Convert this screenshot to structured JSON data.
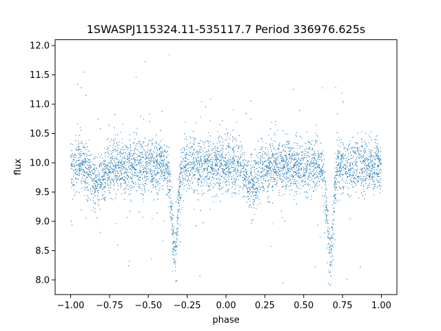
{
  "chart_data": {
    "type": "scatter",
    "title": "1SWASPJ115324.11-535117.7 Period 336976.625s",
    "xlabel": "phase",
    "ylabel": "flux",
    "xlim": [
      -1.1,
      1.1
    ],
    "ylim": [
      7.75,
      12.1
    ],
    "xticks": [
      -1.0,
      -0.75,
      -0.5,
      -0.25,
      0.0,
      0.25,
      0.5,
      0.75,
      1.0
    ],
    "xtick_labels": [
      "−1.00",
      "−0.75",
      "−0.50",
      "−0.25",
      "0.00",
      "0.25",
      "0.50",
      "0.75",
      "1.00"
    ],
    "yticks": [
      8.0,
      8.5,
      9.0,
      9.5,
      10.0,
      10.5,
      11.0,
      11.5,
      12.0
    ],
    "ytick_labels": [
      "8.0",
      "8.5",
      "9.0",
      "9.5",
      "10.0",
      "10.5",
      "11.0",
      "11.5",
      "12.0"
    ],
    "grid": false,
    "marker_color": "#1f77b4",
    "series": [
      {
        "x_range": [
          -1.0,
          1.0
        ],
        "baseline_flux": 9.95,
        "primary_eclipses": [
          {
            "phase": -0.33,
            "min_flux": 8.5
          },
          {
            "phase": 0.67,
            "min_flux": 8.5
          }
        ],
        "secondary_eclipses": [
          {
            "phase": -0.83,
            "min_flux": 9.6
          },
          {
            "phase": 0.17,
            "min_flux": 9.6
          }
        ]
      }
    ]
  }
}
